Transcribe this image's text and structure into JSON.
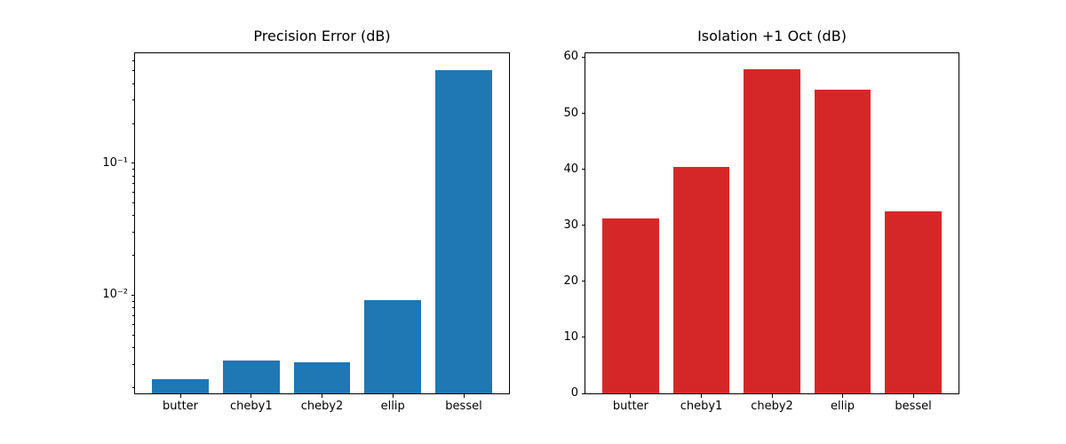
{
  "figure": {
    "background_color": "#ffffff",
    "axis_color": "#000000"
  },
  "chart_data": [
    {
      "type": "bar",
      "title": "Precision Error (dB)",
      "categories": [
        "butter",
        "cheby1",
        "cheby2",
        "ellip",
        "bessel"
      ],
      "values": [
        0.0023,
        0.0032,
        0.0031,
        0.0092,
        0.51
      ],
      "bar_color": "#1f77b4",
      "bar_width": 0.8,
      "yscale": "log",
      "ylim": [
        0.0018,
        0.68
      ],
      "yticks": [
        {
          "value": 0.1,
          "label": "10⁻¹"
        },
        {
          "value": 0.01,
          "label": "10⁻²"
        }
      ],
      "minor_tick_decades": [
        -3,
        -2,
        -1
      ],
      "xlabel": "",
      "ylabel": "",
      "grid": false,
      "legend": null
    },
    {
      "type": "bar",
      "title": "Isolation +1 Oct (dB)",
      "categories": [
        "butter",
        "cheby1",
        "cheby2",
        "ellip",
        "bessel"
      ],
      "values": [
        31.2,
        40.5,
        57.8,
        54.2,
        32.5
      ],
      "bar_color": "#d62728",
      "bar_width": 0.8,
      "yscale": "linear",
      "ylim": [
        0,
        60.7
      ],
      "yticks": [
        {
          "value": 0,
          "label": "0"
        },
        {
          "value": 10,
          "label": "10"
        },
        {
          "value": 20,
          "label": "20"
        },
        {
          "value": 30,
          "label": "30"
        },
        {
          "value": 40,
          "label": "40"
        },
        {
          "value": 50,
          "label": "50"
        },
        {
          "value": 60,
          "label": "60"
        }
      ],
      "xlabel": "",
      "ylabel": "",
      "grid": false,
      "legend": null
    }
  ]
}
